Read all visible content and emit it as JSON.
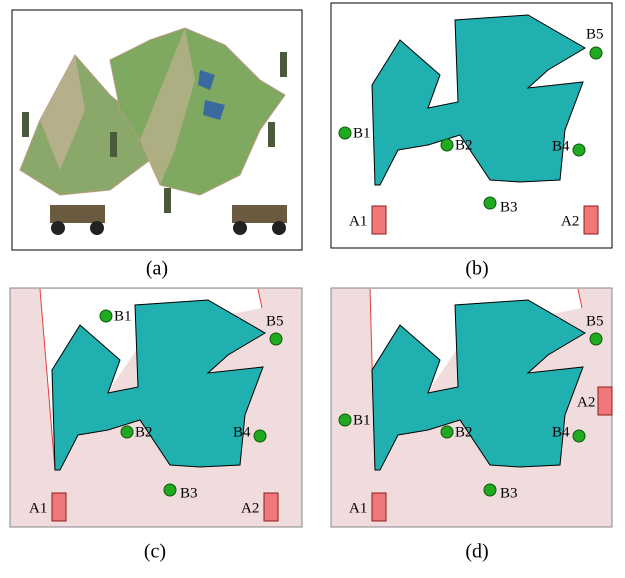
{
  "panels": [
    {
      "caption": "(a)"
    },
    {
      "caption": "(b)",
      "labels": [
        "B1",
        "B2",
        "B3",
        "B4",
        "B5",
        "A1",
        "A2"
      ]
    },
    {
      "caption": "(c)",
      "labels": [
        "B1",
        "B2",
        "B3",
        "B4",
        "B5",
        "A1",
        "A2"
      ]
    },
    {
      "caption": "(d)",
      "labels": [
        "B1",
        "B2",
        "B3",
        "B4",
        "B5",
        "A1",
        "A2"
      ]
    }
  ]
}
